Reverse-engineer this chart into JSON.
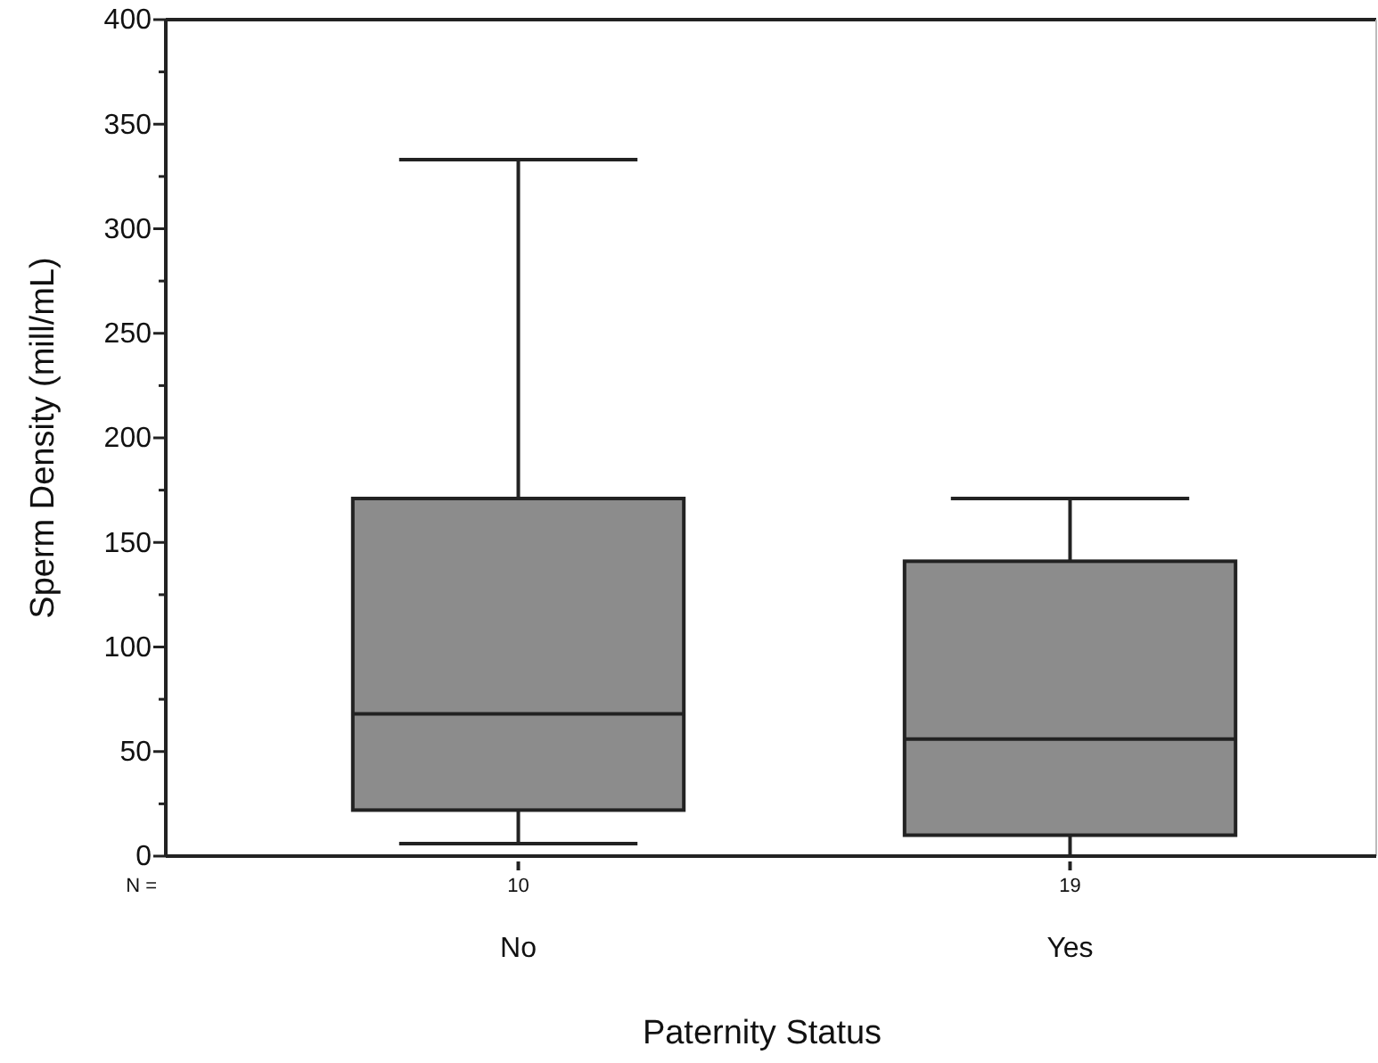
{
  "chart_data": {
    "type": "box",
    "xlabel": "Paternity Status",
    "ylabel": "Sperm Density (mill/mL)",
    "categories": [
      "No",
      "Yes"
    ],
    "boxes": [
      {
        "low": 6,
        "q1": 22,
        "median": 68,
        "q3": 171,
        "high": 333
      },
      {
        "low": 0,
        "q1": 10,
        "median": 56,
        "q3": 141,
        "high": 171
      }
    ],
    "color": "#8c8c8c",
    "ylim": [
      0,
      400
    ],
    "yticks": [
      0,
      {
        "value": 25,
        "label": null
      },
      50,
      {
        "value": 75,
        "label": null
      },
      100,
      {
        "value": 125,
        "label": null
      },
      150,
      {
        "value": 175,
        "label": null
      },
      200,
      {
        "value": 225,
        "label": null
      },
      250,
      {
        "value": 275,
        "label": null
      },
      300,
      {
        "value": 325,
        "label": null
      },
      350,
      {
        "value": 375,
        "label": null
      },
      400
    ],
    "grid": false,
    "annotations": [
      "N =",
      "10",
      "19"
    ]
  }
}
